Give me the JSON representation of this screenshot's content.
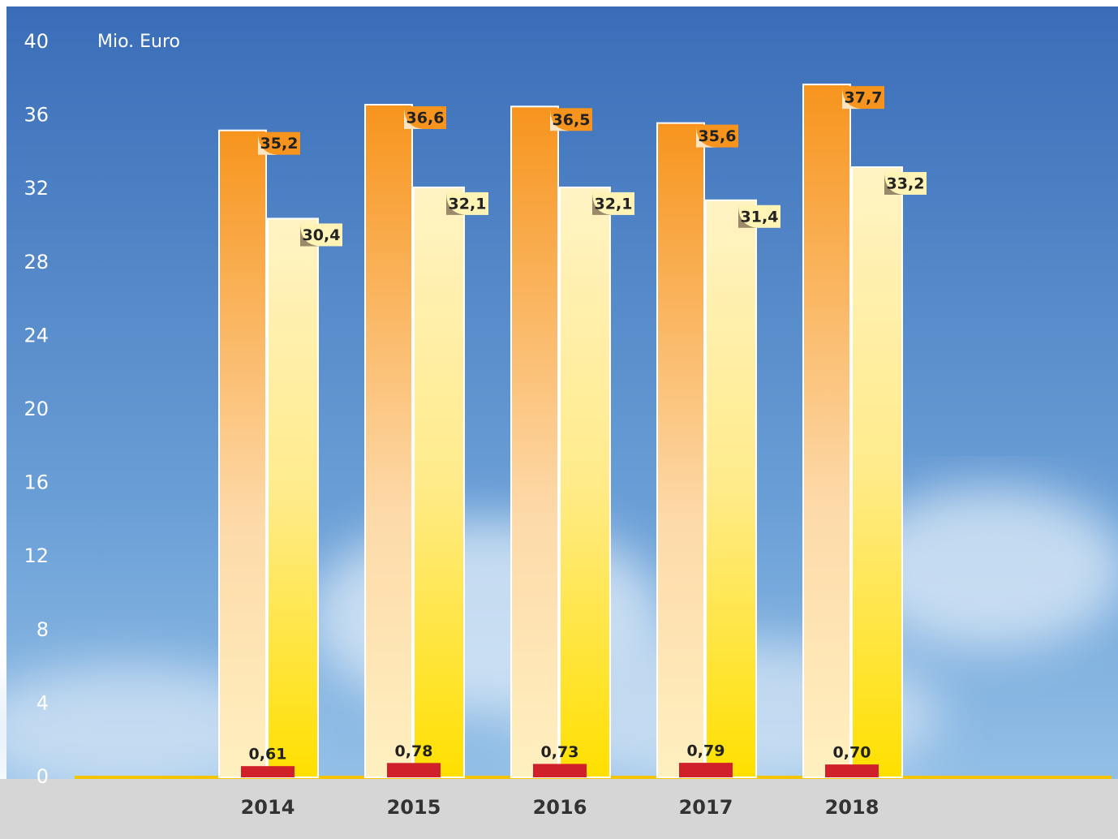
{
  "chart_data": {
    "type": "bar",
    "unit": "Mio. Euro",
    "categories": [
      "2014",
      "2015",
      "2016",
      "2017",
      "2018"
    ],
    "series": [
      {
        "color": "#f7941d",
        "values": [
          35.2,
          36.6,
          36.5,
          35.6,
          37.7
        ],
        "value_labels": [
          "35,2",
          "36,6",
          "36,5",
          "35,6",
          "37,7"
        ]
      },
      {
        "color": "#ffe000",
        "values": [
          30.4,
          32.1,
          32.1,
          31.4,
          33.2
        ],
        "value_labels": [
          "30,4",
          "32,1",
          "32,1",
          "31,4",
          "33,2"
        ]
      },
      {
        "color": "#d0202a",
        "values": [
          0.61,
          0.78,
          0.73,
          0.79,
          0.7
        ],
        "value_labels": [
          "0,61",
          "0,78",
          "0,73",
          "0,79",
          "0,70"
        ]
      }
    ],
    "ylim": [
      0,
      40
    ],
    "yticks": [
      0,
      4,
      8,
      12,
      16,
      20,
      24,
      28,
      32,
      36,
      40
    ]
  }
}
